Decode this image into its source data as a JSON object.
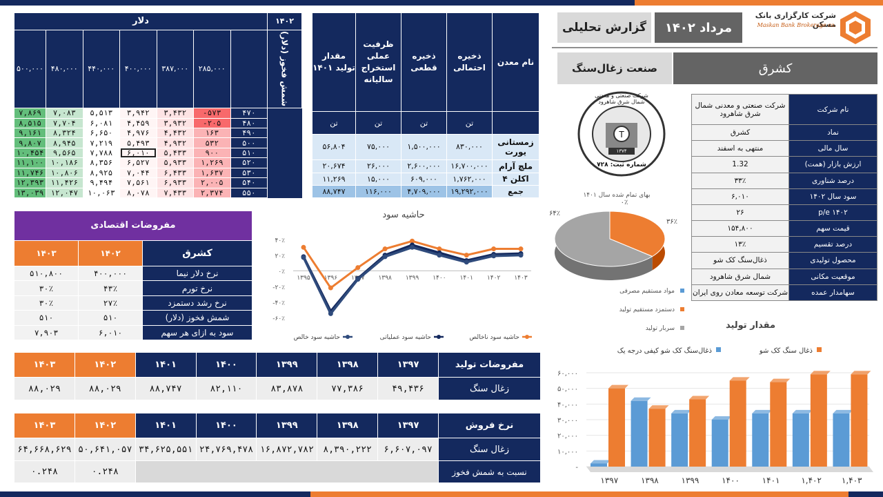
{
  "header": {
    "brand_name": "شرکت کارگزاری بانک مسکن",
    "brand_sub": "Maskan Bank Brokerage co.",
    "month": "مرداد ۱۴۰۲",
    "report": "گزارش تحلیلی",
    "symbol": "کشرق",
    "industry": "صنعت زغال‌سنگ"
  },
  "seal": {
    "top_text": "شرکت صنعتی و معدنی شمال شرق شاهرود",
    "bottom_text": "شماره ثبت: ۷۲۸",
    "year": "۱۳۷۴"
  },
  "sensitivity": {
    "year": "۱۴۰۲",
    "currency": "دلار",
    "side_label": "شمش فخوز (دلار)",
    "cols": [
      "۲۸۵,۰۰۰",
      "۳۸۷,۰۰۰",
      "۴۰۰,۰۰۰",
      "۴۴۰,۰۰۰",
      "۴۸۰,۰۰۰",
      "۵۰۰,۰۰۰"
    ],
    "rows": [
      {
        "label": "۴۷۰",
        "values": [
          "-۵۷۳",
          "۳,۴۳۲",
          "۳,۹۴۲",
          "۵,۵۱۳",
          "۷,۰۸۳",
          "۷,۸۶۹"
        ]
      },
      {
        "label": "۴۸۰",
        "values": [
          "-۲۰۵",
          "۳,۹۳۲",
          "۴,۴۵۹",
          "۶,۰۸۱",
          "۷,۷۰۴",
          "۸,۵۱۵"
        ]
      },
      {
        "label": "۴۹۰",
        "values": [
          "۱۶۳",
          "۴,۴۳۲",
          "۴,۹۷۶",
          "۶,۶۵۰",
          "۸,۳۲۴",
          "۹,۱۶۱"
        ]
      },
      {
        "label": "۵۰۰",
        "values": [
          "۵۳۲",
          "۴,۹۳۲",
          "۵,۴۹۳",
          "۷,۲۱۹",
          "۸,۹۴۵",
          "۹,۸۰۷"
        ]
      },
      {
        "label": "۵۱۰",
        "values": [
          "۹۰۰",
          "۵,۴۳۳",
          "۶,۰۱۰",
          "۷,۷۸۸",
          "۹,۵۶۵",
          "۱۰,۴۵۴"
        ]
      },
      {
        "label": "۵۲۰",
        "values": [
          "۱,۲۶۹",
          "۵,۹۳۳",
          "۶,۵۲۷",
          "۸,۳۵۶",
          "۱۰,۱۸۶",
          "۱۱,۱۰۰"
        ]
      },
      {
        "label": "۵۳۰",
        "values": [
          "۱,۶۳۷",
          "۶,۴۳۳",
          "۷,۰۴۴",
          "۸,۹۲۵",
          "۱۰,۸۰۶",
          "۱۱,۷۴۶"
        ]
      },
      {
        "label": "۵۴۰",
        "values": [
          "۲,۰۰۵",
          "۶,۹۳۳",
          "۷,۵۶۱",
          "۹,۴۹۴",
          "۱۱,۴۲۶",
          "۱۲,۳۹۳"
        ]
      },
      {
        "label": "۵۵۰",
        "values": [
          "۲,۳۷۴",
          "۷,۴۳۳",
          "۸,۰۷۸",
          "۱۰,۰۶۳",
          "۱۲,۰۴۷",
          "۱۳,۰۳۹"
        ]
      }
    ],
    "colors": {
      "neg": "#f8696b",
      "low": "#fbb3b5",
      "mid": "#ffffff",
      "high": "#63be7b",
      "hlow": "#c6e6cf"
    }
  },
  "mines": {
    "headers": [
      "نام معدن",
      "ذخیره احتمالی",
      "ذخیره قطعی",
      "ظرفیت عملی استخراج سالیانه",
      "مقدار تولید ۱۴۰۱"
    ],
    "unit": "تن",
    "rows": [
      {
        "name": "زمستانی یورت",
        "values": [
          "۸۳۰,۰۰۰",
          "۱,۵۰۰,۰۰۰",
          "۷۵,۰۰۰",
          "۵۶,۸۰۴"
        ]
      },
      {
        "name": "ملچ آرام",
        "values": [
          "۱۶,۷۰۰,۰۰۰",
          "۲,۶۰۰,۰۰۰",
          "۲۶,۰۰۰",
          "۲۰,۶۷۴"
        ]
      },
      {
        "name": "اکلن ۴",
        "values": [
          "۱,۷۶۲,۰۰۰",
          "۶۰۹,۰۰۰",
          "۱۵,۰۰۰",
          "۱۱,۲۶۹"
        ]
      }
    ],
    "total": {
      "name": "جمع",
      "values": [
        "۱۹,۲۹۲,۰۰۰",
        "۴,۷۰۹,۰۰۰",
        "۱۱۶,۰۰۰",
        "۸۸,۷۴۷"
      ]
    }
  },
  "company": [
    {
      "k": "نام شرکت",
      "v": "شرکت صنعتی و معدنی شمال شرق شاهرود"
    },
    {
      "k": "نماد",
      "v": "کشرق"
    },
    {
      "k": "سال مالی",
      "v": "منتهی به اسفند"
    },
    {
      "k": "ارزش بازار (همت)",
      "v": "1.32"
    },
    {
      "k": "درصد شناوری",
      "v": "۳۳٪"
    },
    {
      "k": "سود سال ۱۴۰۲",
      "v": "۶,۰۱۰"
    },
    {
      "k": "p/e ۱۴۰۲",
      "v": "۲۶"
    },
    {
      "k": "قیمت سهم",
      "v": "۱۵۴,۸۰۰"
    },
    {
      "k": "درصد تقسیم",
      "v": "۱۳٪"
    },
    {
      "k": "محصول تولیدی",
      "v": "ذغال‌سنگ کک شو"
    },
    {
      "k": "موقعیت مکانی",
      "v": "شمال شرق شاهرود"
    },
    {
      "k": "سهامدار عمده",
      "v": "شرکت توسعه معادن روی ایران"
    }
  ],
  "assumptions": {
    "title": "مفروضات اقتصادی",
    "corner": "کشرق",
    "years": [
      "۱۴۰۲",
      "۱۴۰۳"
    ],
    "rows": [
      {
        "k": "نرخ دلار نیما",
        "v": [
          "۴۰۰,۰۰۰",
          "۵۱۰,۸۰۰"
        ]
      },
      {
        "k": "نرخ تورم",
        "v": [
          "۴۳٪",
          "۳۰٪"
        ]
      },
      {
        "k": "نرخ رشد دستمزد",
        "v": [
          "۲۷٪",
          "۳۰٪"
        ]
      },
      {
        "k": "شمش فخوز (دلار)",
        "v": [
          "۵۱۰",
          "۵۱۰"
        ]
      },
      {
        "k": "سود به ازای هر سهم",
        "v": [
          "۶,۰۱۰",
          "۷,۹۰۳"
        ]
      }
    ]
  },
  "production": {
    "title": "مفروضات تولید",
    "years": [
      "۱۳۹۷",
      "۱۳۹۸",
      "۱۳۹۹",
      "۱۴۰۰",
      "۱۴۰۱",
      "۱۴۰۲",
      "۱۴۰۳"
    ],
    "row_label": "زغال سنگ",
    "values": [
      "۴۹,۴۳۶",
      "۷۷,۳۸۶",
      "۸۳,۸۷۸",
      "۸۲,۱۱۰",
      "۸۸,۷۴۷",
      "۸۸,۰۲۹",
      "۸۸,۰۲۹"
    ]
  },
  "price": {
    "title": "نرخ فروش",
    "years": [
      "۱۳۹۷",
      "۱۳۹۸",
      "۱۳۹۹",
      "۱۴۰۰",
      "۱۴۰۱",
      "۱۴۰۲",
      "۱۴۰۳"
    ],
    "row_label": "زغال سنگ",
    "values": [
      "۶,۶۰۷,۰۹۷",
      "۸,۳۹۰,۲۲۲",
      "۱۶,۸۷۲,۷۸۲",
      "۲۴,۷۶۹,۴۷۸",
      "۳۴,۶۲۵,۵۵۱",
      "۵۰,۶۴۱,۰۵۷",
      "۶۴,۶۶۸,۶۲۹"
    ],
    "ratio_label": "نسبت به شمش فخوز",
    "ratio_values": [
      "۰.۲۴۸",
      "۰.۲۴۸"
    ]
  },
  "chart_data": [
    {
      "type": "line",
      "title": "حاشیه سود",
      "x": [
        "۱۳۹۵",
        "۱۳۹۶",
        "۱۳۹۷",
        "۱۳۹۸",
        "۱۳۹۹",
        "۱۴۰۰",
        "۱۴۰۱",
        "۱۴۰۲",
        "۱۴۰۳"
      ],
      "ylim": [
        -60,
        40
      ],
      "yticks": [
        "-۶۰٪",
        "-۴۰٪",
        "-۲۰٪",
        "۰٪",
        "۲۰٪",
        "۴۰٪"
      ],
      "series": [
        {
          "name": "حاشیه سود ناخالص",
          "color": "#ed7d31",
          "values": [
            30,
            -22,
            4,
            28,
            38,
            28,
            20,
            28,
            28
          ]
        },
        {
          "name": "حاشیه سود عملیاتی",
          "color": "#14295e",
          "values": [
            18,
            -52,
            -10,
            20,
            33,
            23,
            13,
            21,
            22
          ]
        },
        {
          "name": "حاشیه سود خالص",
          "color": "#2f4b7c",
          "values": [
            17,
            -55,
            -11,
            18,
            30,
            20,
            11,
            19,
            20
          ]
        }
      ]
    },
    {
      "type": "pie",
      "title": "بهای تمام شده سال ۱۴۰۱",
      "series": [
        {
          "name": "مواد مستقیم مصرفی",
          "value": 0,
          "label": "۰٪",
          "color": "#5b9bd5"
        },
        {
          "name": "دستمزد مستقیم تولید",
          "value": 36,
          "label": "۳۶٪",
          "color": "#ed7d31"
        },
        {
          "name": "سربار تولید",
          "value": 64,
          "label": "۶۴٪",
          "color": "#a5a5a5"
        }
      ]
    },
    {
      "type": "bar",
      "title": "مقدار تولید",
      "categories": [
        "۱۳۹۷",
        "۱۳۹۸",
        "۱۳۹۹",
        "۱۴۰۰",
        "۱۴۰۱",
        "۱,۴۰۲",
        "۱,۴۰۳"
      ],
      "ylim": [
        0,
        60000
      ],
      "yticks": [
        "-",
        "۱۰,۰۰۰",
        "۲۰,۰۰۰",
        "۳۰,۰۰۰",
        "۴۰,۰۰۰",
        "۵۰,۰۰۰",
        "۶۰,۰۰۰"
      ],
      "series": [
        {
          "name": "ذغال‌سنگ کک شو کیفی درجه یک",
          "color": "#5b9bd5",
          "values": [
            2000,
            42000,
            34000,
            30000,
            34000,
            34000,
            34000
          ]
        },
        {
          "name": "ذغال سنگ کک شو",
          "color": "#ed7d31",
          "values": [
            50000,
            37000,
            43000,
            55000,
            54000,
            59000,
            59000
          ]
        }
      ]
    }
  ]
}
